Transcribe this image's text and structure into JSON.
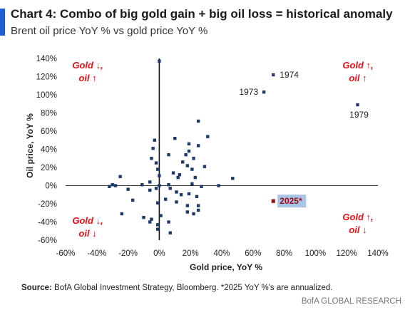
{
  "header": {
    "title": "Chart 4: Combo of big gold gain + big oil loss = historical anomaly",
    "subtitle": "Brent oil price YoY % vs gold price YoY %"
  },
  "footer": {
    "source_label": "Source:",
    "source_text": "BofA Global Investment Strategy, Bloomberg. *2025 YoY %'s are annualized.",
    "brand": "BofA GLOBAL RESEARCH"
  },
  "colors": {
    "accent": "#1e5fd6",
    "points": "#1f3a68",
    "highlight": "#9b0d14",
    "quadrant_text": "#e8101a",
    "highlight_box": "#a8c4e6"
  },
  "quadrants": {
    "top_left": [
      "Gold ↓,",
      "oil ↑"
    ],
    "top_right": [
      "Gold ↑,",
      "oil ↑"
    ],
    "bottom_left": [
      "Gold ↓,",
      "oil ↓"
    ],
    "bottom_right": [
      "Gold ↑,",
      "oil ↓"
    ]
  },
  "chart_data": {
    "type": "scatter",
    "xlabel": "Gold price, YoY %",
    "ylabel": "Oil price, YoY %",
    "xlim": [
      -60,
      140
    ],
    "ylim": [
      -60,
      140
    ],
    "xticks": [
      -60,
      -40,
      -20,
      0,
      20,
      40,
      60,
      80,
      100,
      120,
      140
    ],
    "yticks": [
      -60,
      -40,
      -20,
      0,
      20,
      40,
      60,
      80,
      100,
      120,
      140
    ],
    "tick_format": "percent",
    "grid": false,
    "points": [
      {
        "x": 0,
        "y": 137
      },
      {
        "x": 73,
        "y": 122,
        "label": "1974"
      },
      {
        "x": 67,
        "y": 103,
        "label": "1973"
      },
      {
        "x": 127,
        "y": 89,
        "label": "1979"
      },
      {
        "x": 25,
        "y": 71
      },
      {
        "x": 31,
        "y": 54
      },
      {
        "x": 10,
        "y": 52
      },
      {
        "x": -3,
        "y": 50
      },
      {
        "x": 19,
        "y": 46
      },
      {
        "x": -4,
        "y": 41
      },
      {
        "x": 25,
        "y": 44
      },
      {
        "x": 19,
        "y": 38
      },
      {
        "x": 22,
        "y": 30
      },
      {
        "x": 6,
        "y": 34
      },
      {
        "x": -5,
        "y": 30
      },
      {
        "x": 17,
        "y": 34
      },
      {
        "x": -2,
        "y": 25
      },
      {
        "x": 15,
        "y": 26
      },
      {
        "x": 29,
        "y": 21
      },
      {
        "x": 18,
        "y": 22
      },
      {
        "x": 13,
        "y": 12
      },
      {
        "x": 21,
        "y": 18
      },
      {
        "x": -1,
        "y": 18
      },
      {
        "x": 0,
        "y": 11
      },
      {
        "x": 9,
        "y": 14
      },
      {
        "x": 12,
        "y": 9
      },
      {
        "x": 23,
        "y": 9
      },
      {
        "x": 47,
        "y": 8
      },
      {
        "x": -25,
        "y": 10
      },
      {
        "x": -6,
        "y": 4
      },
      {
        "x": -30,
        "y": 1
      },
      {
        "x": -28,
        "y": 0
      },
      {
        "x": -32,
        "y": -1
      },
      {
        "x": -11,
        "y": 1
      },
      {
        "x": 21,
        "y": 2
      },
      {
        "x": 6,
        "y": 1
      },
      {
        "x": 0,
        "y": 0
      },
      {
        "x": 27,
        "y": -1
      },
      {
        "x": 38,
        "y": 0
      },
      {
        "x": -20,
        "y": -4
      },
      {
        "x": -6,
        "y": -5
      },
      {
        "x": -2,
        "y": -3
      },
      {
        "x": 7,
        "y": -3
      },
      {
        "x": 11,
        "y": -7
      },
      {
        "x": 19,
        "y": -9
      },
      {
        "x": 24,
        "y": -12
      },
      {
        "x": 14,
        "y": -10
      },
      {
        "x": -17,
        "y": -16
      },
      {
        "x": -1,
        "y": -19
      },
      {
        "x": 4,
        "y": -15
      },
      {
        "x": 11,
        "y": -18
      },
      {
        "x": 18,
        "y": -22
      },
      {
        "x": 25,
        "y": -22
      },
      {
        "x": 25,
        "y": -27
      },
      {
        "x": 18,
        "y": -29
      },
      {
        "x": -24,
        "y": -31
      },
      {
        "x": -10,
        "y": -35
      },
      {
        "x": -5,
        "y": -37
      },
      {
        "x": 22,
        "y": -31
      },
      {
        "x": 1,
        "y": -33
      },
      {
        "x": -1,
        "y": -43
      },
      {
        "x": -6,
        "y": -40
      },
      {
        "x": 6,
        "y": -40
      },
      {
        "x": -1,
        "y": -48
      },
      {
        "x": 7,
        "y": -52
      }
    ],
    "highlight": {
      "x": 73,
      "y": -17,
      "label": "2025*"
    }
  }
}
